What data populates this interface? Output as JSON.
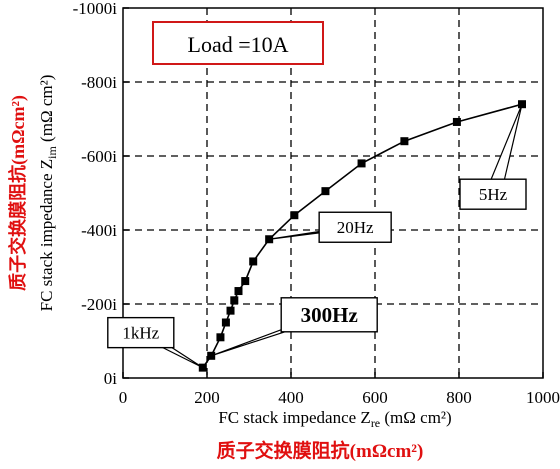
{
  "chart_data": {
    "type": "line",
    "annotation": "Load =10A",
    "xlim": [
      0,
      1000
    ],
    "ylim": [
      0,
      -1000
    ],
    "xticks": [
      0,
      200,
      400,
      600,
      800,
      1000
    ],
    "yticks": [
      0,
      -200,
      -400,
      -600,
      -800,
      -1000
    ],
    "ytick_labels": [
      "0i",
      "-200i",
      "-400i",
      "-600i",
      "-800i",
      "-1000i"
    ],
    "grid": true,
    "x": [
      190,
      210,
      232,
      245,
      256,
      265,
      275,
      291,
      310,
      348,
      408,
      482,
      568,
      670,
      795,
      950
    ],
    "y": [
      -28,
      -60,
      -110,
      -150,
      -182,
      -210,
      -235,
      -262,
      -315,
      -375,
      -440,
      -505,
      -580,
      -640,
      -692,
      -740
    ],
    "callouts": [
      {
        "text": "1kHz",
        "x": 190,
        "y": -28
      },
      {
        "text": "300Hz",
        "x": 210,
        "y": -60
      },
      {
        "text": "20Hz",
        "x": 348,
        "y": -375
      },
      {
        "text": "5Hz",
        "x": 950,
        "y": -740
      }
    ]
  },
  "labels": {
    "ylabel_en": "FC stack impedance Z",
    "ylabel_sub": "im",
    "ylabel_unit": " (mΩ cm²)",
    "ylabel_cn": "质子交换膜阻抗(mΩcm²)",
    "xlabel_en": "FC stack impedance Z",
    "xlabel_sub": "re",
    "xlabel_unit": " (mΩ cm²)",
    "xlabel_cn": "质子交换膜阻抗(mΩcm²)"
  },
  "colors": {
    "annotation_border": "#d01818",
    "cn_label": "#e01010",
    "line": "#000000",
    "grid": "#000000"
  }
}
